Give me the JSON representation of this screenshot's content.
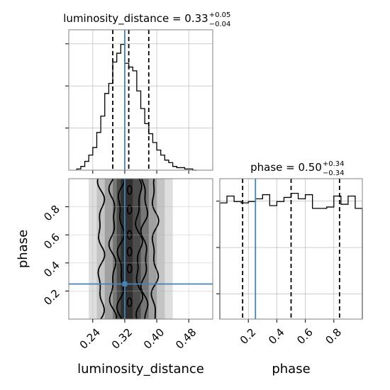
{
  "chart_data": {
    "type": "corner",
    "parameters": [
      "luminosity_distance",
      "phase"
    ],
    "panels": [
      {
        "id": "hist_luminosity_distance",
        "type": "histogram",
        "parameter": "luminosity_distance",
        "title": {
          "main": "luminosity_distance = 0.33",
          "sup": "+0.05",
          "sub": "−0.04"
        },
        "xlim": [
          0.18,
          0.54
        ],
        "bin_edges": [
          0.2,
          0.21,
          0.22,
          0.23,
          0.24,
          0.25,
          0.26,
          0.27,
          0.28,
          0.29,
          0.3,
          0.31,
          0.32,
          0.33,
          0.34,
          0.35,
          0.36,
          0.37,
          0.38,
          0.39,
          0.4,
          0.41,
          0.42,
          0.43,
          0.44,
          0.45,
          0.46,
          0.47,
          0.48,
          0.49,
          0.5
        ],
        "counts": [
          1,
          3,
          7,
          12,
          18,
          30,
          43,
          61,
          69,
          86,
          93,
          100,
          85,
          82,
          79,
          63,
          49,
          37,
          29,
          22,
          16,
          12,
          8,
          6,
          3,
          2,
          2,
          1,
          1,
          0
        ],
        "quantiles": [
          0.29,
          0.33,
          0.38
        ],
        "truth": 0.32,
        "grid": true
      },
      {
        "id": "hist_phase",
        "type": "histogram",
        "parameter": "phase",
        "title": {
          "main": "phase = 0.50",
          "sup": "+0.34",
          "sub": "−0.34"
        },
        "xlim": [
          0.0,
          1.0
        ],
        "bin_edges": [
          0.0,
          0.05,
          0.1,
          0.15,
          0.2,
          0.25,
          0.3,
          0.35,
          0.4,
          0.45,
          0.5,
          0.55,
          0.6,
          0.65,
          0.7,
          0.75,
          0.8,
          0.85,
          0.9,
          0.95,
          1.0
        ],
        "counts": [
          85,
          90,
          86,
          85,
          86,
          88,
          91,
          83,
          86,
          89,
          92,
          88,
          91,
          81,
          81,
          82,
          90,
          84,
          90,
          81
        ],
        "quantiles": [
          0.16,
          0.5,
          0.84
        ],
        "truth": 0.25,
        "grid": true
      },
      {
        "id": "joint_luminosity_distance_phase",
        "type": "2d-density",
        "x_param": "luminosity_distance",
        "y_param": "phase",
        "xlim": [
          0.18,
          0.54
        ],
        "ylim": [
          0.0,
          1.0
        ],
        "truth": {
          "x": 0.32,
          "y": 0.25
        },
        "grid": true
      }
    ],
    "axes": {
      "x_bottom_left": {
        "label": "luminosity_distance",
        "ticks": [
          0.24,
          0.32,
          0.4,
          0.48
        ],
        "tick_labels": [
          "0.24",
          "0.32",
          "0.40",
          "0.48"
        ]
      },
      "y_left_joint": {
        "label": "phase",
        "ticks": [
          0.2,
          0.4,
          0.6,
          0.8
        ],
        "tick_labels": [
          "0.2",
          "0.4",
          "0.6",
          "0.8"
        ]
      },
      "x_bottom_right": {
        "label": "phase",
        "ticks": [
          0.2,
          0.4,
          0.6,
          0.8
        ],
        "tick_labels": [
          "0.2",
          "0.4",
          "0.6",
          "0.8"
        ]
      }
    },
    "colors": {
      "truth": "#4682b4",
      "histogram": "#000000",
      "quantile": "#000000",
      "grid": "#b0b0b0",
      "axes": "#808080",
      "density_dark": "#2b2b2b",
      "density_light": "#eeeeee"
    }
  }
}
